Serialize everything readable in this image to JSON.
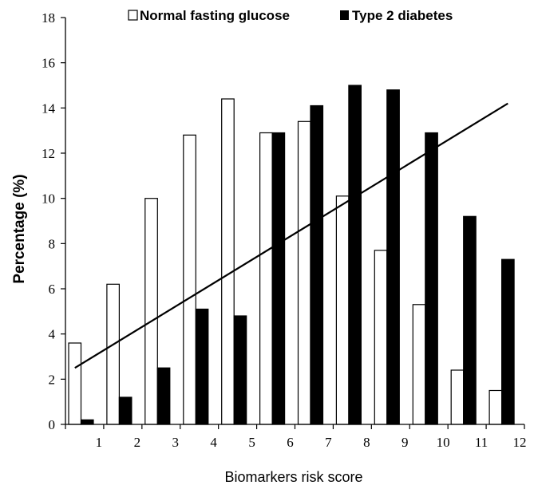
{
  "chart_data": {
    "type": "bar",
    "title": "",
    "xlabel": "Biomarkers risk score",
    "ylabel": "Percentage (%)",
    "categories": [
      "1",
      "2",
      "3",
      "4",
      "5",
      "6",
      "7",
      "8",
      "9",
      "10",
      "11",
      "12"
    ],
    "ylim": [
      0,
      18
    ],
    "yticks": [
      "0",
      "2",
      "4",
      "6",
      "8",
      "10",
      "12",
      "14",
      "16",
      "18"
    ],
    "legend_position": "top",
    "grid": false,
    "series": [
      {
        "name": "Normal fasting glucose",
        "color": "#ffffff",
        "values": [
          3.6,
          6.2,
          10.0,
          12.8,
          14.4,
          12.9,
          13.4,
          10.1,
          7.7,
          5.3,
          2.4,
          1.5
        ]
      },
      {
        "name": "Type 2 diabetes",
        "color": "#000000",
        "values": [
          0.2,
          1.2,
          2.5,
          5.1,
          4.8,
          12.9,
          14.1,
          15.0,
          14.8,
          12.9,
          9.2,
          7.3
        ]
      }
    ],
    "trendline": {
      "type": "linear",
      "start": [
        1,
        2.5
      ],
      "end": [
        12,
        14.2
      ]
    }
  }
}
